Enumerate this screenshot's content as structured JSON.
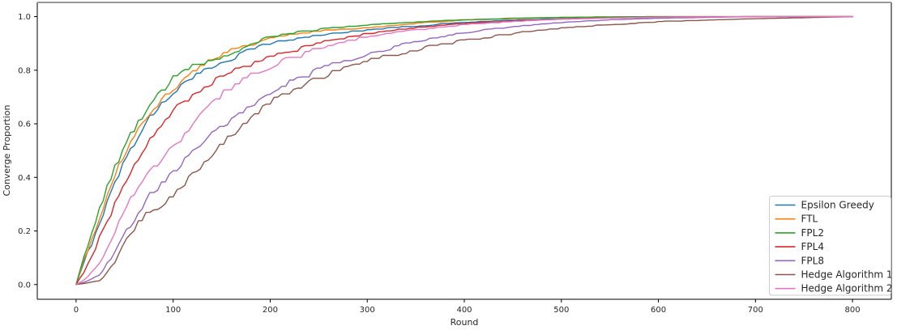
{
  "figure": {
    "background": "#ffffff",
    "spine_color": "#000000",
    "top_border_color": "#999999"
  },
  "chart_data": {
    "type": "line",
    "title": "",
    "xlabel": "Round",
    "ylabel": "Converge Proportion",
    "xlim": [
      -40,
      840
    ],
    "ylim": [
      -0.055,
      1.053
    ],
    "xticks": [
      0,
      100,
      200,
      300,
      400,
      500,
      600,
      700,
      800
    ],
    "yticks": [
      0.0,
      0.2,
      0.4,
      0.6,
      0.8,
      1.0
    ],
    "grid": false,
    "legend_position": "lower right",
    "x": [
      0,
      10,
      25,
      40,
      55,
      75,
      100,
      125,
      150,
      175,
      200,
      250,
      300,
      350,
      400,
      450,
      500,
      550,
      600,
      700,
      800
    ],
    "series": [
      {
        "name": "Epsilon Greedy",
        "color": "#1f77b4",
        "values": [
          0,
          0.1,
          0.24,
          0.38,
          0.5,
          0.62,
          0.72,
          0.78,
          0.83,
          0.87,
          0.9,
          0.93,
          0.95,
          0.965,
          0.978,
          0.987,
          0.992,
          0.996,
          0.998,
          1.0,
          1.0
        ]
      },
      {
        "name": "FTL",
        "color": "#ff7f0e",
        "values": [
          0,
          0.11,
          0.26,
          0.41,
          0.52,
          0.64,
          0.73,
          0.8,
          0.86,
          0.89,
          0.92,
          0.945,
          0.958,
          0.975,
          0.987,
          0.993,
          0.997,
          0.999,
          1.0,
          1.0,
          1.0
        ]
      },
      {
        "name": "FPL2",
        "color": "#2ca02c",
        "values": [
          0,
          0.13,
          0.29,
          0.44,
          0.55,
          0.67,
          0.77,
          0.82,
          0.85,
          0.89,
          0.925,
          0.952,
          0.968,
          0.98,
          0.988,
          0.994,
          0.997,
          0.999,
          1.0,
          1.0,
          1.0
        ]
      },
      {
        "name": "FPL4",
        "color": "#d62728",
        "values": [
          0,
          0.06,
          0.18,
          0.3,
          0.41,
          0.54,
          0.65,
          0.72,
          0.775,
          0.815,
          0.845,
          0.9,
          0.935,
          0.958,
          0.974,
          0.984,
          0.991,
          0.995,
          0.998,
          1.0,
          1.0
        ]
      },
      {
        "name": "FPL8",
        "color": "#9467bd",
        "values": [
          0,
          0.01,
          0.04,
          0.12,
          0.22,
          0.33,
          0.42,
          0.51,
          0.59,
          0.66,
          0.72,
          0.8,
          0.86,
          0.905,
          0.94,
          0.962,
          0.978,
          0.988,
          0.994,
          1.0,
          1.0
        ]
      },
      {
        "name": "Hedge Algorithm 1",
        "color": "#8c564b",
        "values": [
          0,
          0.005,
          0.015,
          0.08,
          0.19,
          0.27,
          0.33,
          0.43,
          0.52,
          0.61,
          0.68,
          0.77,
          0.83,
          0.875,
          0.91,
          0.936,
          0.956,
          0.97,
          0.981,
          0.992,
          1.0
        ]
      },
      {
        "name": "Hedge Algorithm 2",
        "color": "#e377c2",
        "values": [
          0,
          0.02,
          0.08,
          0.2,
          0.31,
          0.42,
          0.51,
          0.62,
          0.71,
          0.77,
          0.815,
          0.88,
          0.926,
          0.95,
          0.97,
          0.982,
          0.99,
          0.995,
          0.998,
          1.0,
          1.0
        ]
      }
    ]
  }
}
